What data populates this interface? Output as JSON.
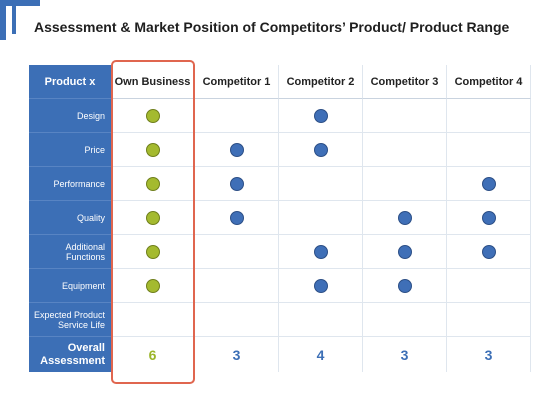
{
  "title": "Assessment & Market Position of Competitors’ Product/ Product Range",
  "corner_label": "Product x",
  "columns": [
    "Own Business",
    "Competitor 1",
    "Competitor 2",
    "Competitor 3",
    "Competitor 4"
  ],
  "rows": [
    {
      "label": "Design",
      "marks": [
        true,
        false,
        true,
        false,
        false
      ]
    },
    {
      "label": "Price",
      "marks": [
        true,
        true,
        true,
        false,
        false
      ]
    },
    {
      "label": "Performance",
      "marks": [
        true,
        true,
        false,
        false,
        true
      ]
    },
    {
      "label": "Quality",
      "marks": [
        true,
        true,
        false,
        true,
        true
      ]
    },
    {
      "label": "Additional\nFunctions",
      "marks": [
        true,
        false,
        true,
        true,
        true
      ]
    },
    {
      "label": "Equipment",
      "marks": [
        true,
        false,
        true,
        true,
        false
      ]
    },
    {
      "label": "Expected Product\nService Life",
      "marks": [
        false,
        false,
        false,
        false,
        false
      ]
    }
  ],
  "overall": {
    "label": "Overall\nAssessment",
    "scores": [
      "6",
      "3",
      "4",
      "3",
      "3"
    ]
  },
  "colors": {
    "sidebar": "#3c6fb6",
    "own_dot": "#a4ba2f",
    "competitor_dot": "#3f6fb7",
    "highlight": "#e0664f"
  }
}
